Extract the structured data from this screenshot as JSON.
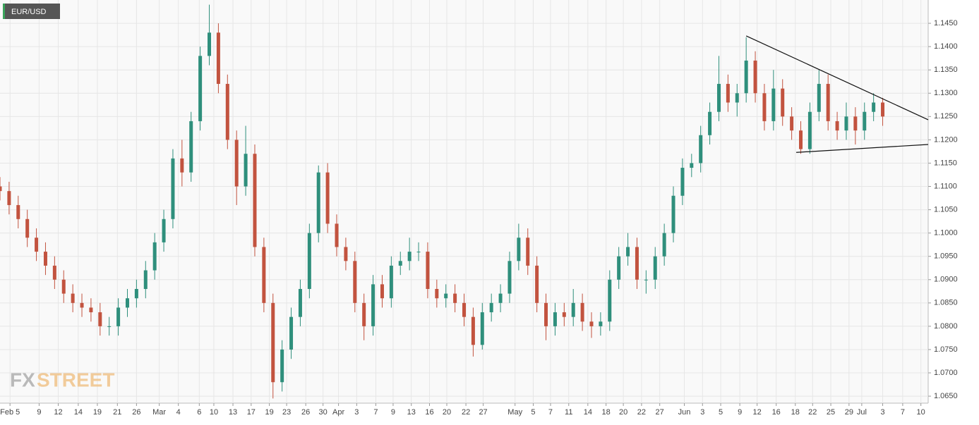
{
  "chart_data": {
    "type": "candlestick",
    "title": "EUR/USD",
    "watermark": [
      "FX",
      "STREET"
    ],
    "up_color": "#2f8f7c",
    "down_color": "#c2533f",
    "grid": true,
    "xlim": [
      0,
      102
    ],
    "ylim": [
      1.0635,
      1.15
    ],
    "x": [
      0,
      1,
      2,
      3,
      4,
      5,
      6,
      7,
      8,
      9,
      10,
      11,
      12,
      13,
      14,
      15,
      16,
      17,
      18,
      19,
      20,
      21,
      22,
      23,
      24,
      25,
      26,
      27,
      28,
      29,
      30,
      31,
      32,
      33,
      34,
      35,
      36,
      37,
      38,
      39,
      40,
      41,
      42,
      43,
      44,
      45,
      46,
      47,
      48,
      49,
      50,
      51,
      52,
      53,
      54,
      55,
      56,
      57,
      58,
      59,
      60,
      61,
      62,
      63,
      64,
      65,
      66,
      67,
      68,
      69,
      70,
      71,
      72,
      73,
      74,
      75,
      76,
      77,
      78,
      79,
      80,
      81,
      82,
      83,
      84,
      85,
      86,
      87,
      88,
      89,
      90,
      91,
      92,
      93,
      94,
      95,
      96,
      97
    ],
    "open": [
      1.11,
      1.109,
      1.106,
      1.103,
      1.099,
      1.096,
      1.093,
      1.09,
      1.087,
      1.085,
      1.084,
      1.083,
      1.08,
      1.08,
      1.084,
      1.086,
      1.088,
      1.092,
      1.098,
      1.103,
      1.116,
      1.113,
      1.124,
      1.138,
      1.143,
      1.132,
      1.12,
      1.11,
      1.117,
      1.097,
      1.085,
      1.068,
      1.075,
      1.082,
      1.088,
      1.1,
      1.113,
      1.102,
      1.097,
      1.094,
      1.085,
      1.08,
      1.089,
      1.086,
      1.093,
      1.094,
      1.096,
      1.096,
      1.088,
      1.086,
      1.087,
      1.085,
      1.082,
      1.076,
      1.083,
      1.085,
      1.087,
      1.094,
      1.099,
      1.093,
      1.085,
      1.08,
      1.083,
      1.082,
      1.085,
      1.081,
      1.08,
      1.081,
      1.09,
      1.095,
      1.097,
      1.09,
      1.09,
      1.095,
      1.1,
      1.108,
      1.114,
      1.115,
      1.121,
      1.126,
      1.132,
      1.128,
      1.13,
      1.137,
      1.13,
      1.124,
      1.131,
      1.125,
      1.122,
      1.118,
      1.126,
      1.132,
      1.124,
      1.122,
      1.125,
      1.122,
      1.126,
      1.128
    ],
    "high": [
      1.112,
      1.111,
      1.108,
      1.105,
      1.101,
      1.098,
      1.095,
      1.092,
      1.089,
      1.087,
      1.086,
      1.085,
      1.082,
      1.086,
      1.088,
      1.09,
      1.094,
      1.1,
      1.105,
      1.118,
      1.12,
      1.126,
      1.14,
      1.149,
      1.145,
      1.134,
      1.122,
      1.123,
      1.119,
      1.099,
      1.087,
      1.077,
      1.084,
      1.09,
      1.102,
      1.1145,
      1.115,
      1.104,
      1.099,
      1.096,
      1.087,
      1.091,
      1.091,
      1.095,
      1.096,
      1.099,
      1.098,
      1.098,
      1.09,
      1.089,
      1.089,
      1.087,
      1.084,
      1.085,
      1.087,
      1.089,
      1.096,
      1.102,
      1.101,
      1.095,
      1.087,
      1.085,
      1.085,
      1.088,
      1.087,
      1.083,
      1.083,
      1.092,
      1.097,
      1.1,
      1.099,
      1.092,
      1.097,
      1.102,
      1.11,
      1.116,
      1.117,
      1.123,
      1.128,
      1.138,
      1.134,
      1.132,
      1.142,
      1.139,
      1.132,
      1.135,
      1.133,
      1.127,
      1.124,
      1.128,
      1.135,
      1.134,
      1.126,
      1.128,
      1.127,
      1.128,
      1.13,
      1.129
    ],
    "low": [
      1.107,
      1.104,
      1.101,
      1.097,
      1.094,
      1.091,
      1.088,
      1.085,
      1.083,
      1.082,
      1.081,
      1.078,
      1.078,
      1.078,
      1.082,
      1.084,
      1.086,
      1.09,
      1.096,
      1.101,
      1.11,
      1.111,
      1.122,
      1.136,
      1.13,
      1.118,
      1.106,
      1.108,
      1.095,
      1.083,
      1.0645,
      1.066,
      1.073,
      1.08,
      1.086,
      1.098,
      1.1,
      1.095,
      1.092,
      1.083,
      1.077,
      1.078,
      1.084,
      1.084,
      1.091,
      1.092,
      1.094,
      1.086,
      1.084,
      1.084,
      1.083,
      1.08,
      1.0735,
      1.075,
      1.081,
      1.083,
      1.085,
      1.092,
      1.091,
      1.083,
      1.077,
      1.078,
      1.08,
      1.08,
      1.079,
      1.0775,
      1.078,
      1.079,
      1.088,
      1.093,
      1.088,
      1.087,
      1.088,
      1.093,
      1.098,
      1.106,
      1.112,
      1.113,
      1.119,
      1.124,
      1.126,
      1.125,
      1.128,
      1.128,
      1.122,
      1.122,
      1.123,
      1.12,
      1.117,
      1.117,
      1.124,
      1.122,
      1.12,
      1.12,
      1.119,
      1.12,
      1.124,
      1.123
    ],
    "close": [
      1.109,
      1.106,
      1.103,
      1.099,
      1.096,
      1.093,
      1.09,
      1.087,
      1.085,
      1.084,
      1.083,
      1.08,
      1.08,
      1.084,
      1.086,
      1.088,
      1.092,
      1.098,
      1.103,
      1.116,
      1.113,
      1.124,
      1.138,
      1.143,
      1.132,
      1.12,
      1.11,
      1.117,
      1.097,
      1.085,
      1.068,
      1.075,
      1.082,
      1.088,
      1.1,
      1.113,
      1.102,
      1.097,
      1.094,
      1.085,
      1.08,
      1.089,
      1.086,
      1.093,
      1.094,
      1.096,
      1.096,
      1.088,
      1.086,
      1.087,
      1.085,
      1.082,
      1.076,
      1.083,
      1.085,
      1.087,
      1.094,
      1.099,
      1.093,
      1.085,
      1.08,
      1.083,
      1.082,
      1.085,
      1.081,
      1.08,
      1.081,
      1.09,
      1.095,
      1.097,
      1.09,
      1.09,
      1.095,
      1.1,
      1.108,
      1.114,
      1.115,
      1.121,
      1.126,
      1.132,
      1.128,
      1.13,
      1.137,
      1.13,
      1.124,
      1.131,
      1.125,
      1.122,
      1.118,
      1.126,
      1.132,
      1.124,
      1.122,
      1.125,
      1.122,
      1.126,
      1.128,
      1.125
    ],
    "trendlines": [
      {
        "x": [
          82,
          102
        ],
        "y": [
          1.1423,
          1.1243
        ]
      },
      {
        "x": [
          87.5,
          102
        ],
        "y": [
          1.1173,
          1.119
        ]
      }
    ],
    "yticks": [
      {
        "value": 1.065,
        "label": "1.0650"
      },
      {
        "value": 1.07,
        "label": "1.0700"
      },
      {
        "value": 1.075,
        "label": "1.0750"
      },
      {
        "value": 1.08,
        "label": "1.0800"
      },
      {
        "value": 1.085,
        "label": "1.0850"
      },
      {
        "value": 1.09,
        "label": "1.0900"
      },
      {
        "value": 1.095,
        "label": "1.0950"
      },
      {
        "value": 1.1,
        "label": "1.1000"
      },
      {
        "value": 1.105,
        "label": "1.1050"
      },
      {
        "value": 1.11,
        "label": "1.1100"
      },
      {
        "value": 1.115,
        "label": "1.1150"
      },
      {
        "value": 1.12,
        "label": "1.1200"
      },
      {
        "value": 1.125,
        "label": "1.1250"
      },
      {
        "value": 1.13,
        "label": "1.1300"
      },
      {
        "value": 1.135,
        "label": "1.1350"
      },
      {
        "value": 1.14,
        "label": "1.1400"
      },
      {
        "value": 1.145,
        "label": "1.1450"
      }
    ],
    "xticks": [
      {
        "value": 1.1,
        "label": "Feb 5"
      },
      {
        "value": 4.3,
        "label": "9"
      },
      {
        "value": 6.4,
        "label": "12"
      },
      {
        "value": 8.6,
        "label": "14"
      },
      {
        "value": 10.7,
        "label": "19"
      },
      {
        "value": 12.9,
        "label": "21"
      },
      {
        "value": 15,
        "label": "26"
      },
      {
        "value": 17.5,
        "label": "Mar"
      },
      {
        "value": 19.6,
        "label": "4"
      },
      {
        "value": 21.9,
        "label": "6"
      },
      {
        "value": 23.5,
        "label": "10"
      },
      {
        "value": 25.6,
        "label": "13"
      },
      {
        "value": 27.6,
        "label": "17"
      },
      {
        "value": 29.6,
        "label": "19"
      },
      {
        "value": 31.5,
        "label": "23"
      },
      {
        "value": 33.6,
        "label": "26"
      },
      {
        "value": 35.5,
        "label": "30"
      },
      {
        "value": 37.2,
        "label": "Apr"
      },
      {
        "value": 39.2,
        "label": "3"
      },
      {
        "value": 41.3,
        "label": "7"
      },
      {
        "value": 43.2,
        "label": "9"
      },
      {
        "value": 45.2,
        "label": "13"
      },
      {
        "value": 47.2,
        "label": "16"
      },
      {
        "value": 49.1,
        "label": "20"
      },
      {
        "value": 51.2,
        "label": "22"
      },
      {
        "value": 53.1,
        "label": "27"
      },
      {
        "value": 56.6,
        "label": "May"
      },
      {
        "value": 58.6,
        "label": "5"
      },
      {
        "value": 60.5,
        "label": "7"
      },
      {
        "value": 62.5,
        "label": "11"
      },
      {
        "value": 64.6,
        "label": "14"
      },
      {
        "value": 66.6,
        "label": "18"
      },
      {
        "value": 68.5,
        "label": "20"
      },
      {
        "value": 70.5,
        "label": "22"
      },
      {
        "value": 72.5,
        "label": "27"
      },
      {
        "value": 75.2,
        "label": "Jun"
      },
      {
        "value": 77.2,
        "label": "3"
      },
      {
        "value": 79.2,
        "label": "5"
      },
      {
        "value": 81.3,
        "label": "9"
      },
      {
        "value": 83.2,
        "label": "12"
      },
      {
        "value": 85.3,
        "label": "16"
      },
      {
        "value": 87.4,
        "label": "18"
      },
      {
        "value": 89.3,
        "label": "22"
      },
      {
        "value": 91.3,
        "label": "25"
      },
      {
        "value": 93.3,
        "label": "29"
      },
      {
        "value": 94.7,
        "label": "Jul"
      },
      {
        "value": 97,
        "label": "3"
      },
      {
        "value": 99.2,
        "label": "7"
      },
      {
        "value": 101.2,
        "label": "10"
      }
    ]
  }
}
